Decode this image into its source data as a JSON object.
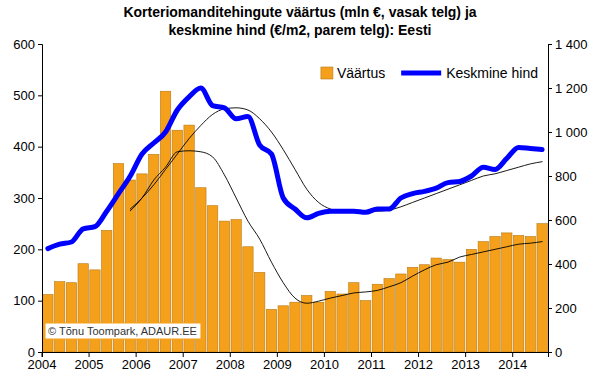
{
  "chart_data": {
    "type": "bar",
    "title": [
      "Korteriomanditehingute väärtus (mln €, vasak telg) ja",
      "keskmine hind (€/m2, parem telg): Eesti"
    ],
    "annotation": "© Tõnu Toompark, ADAUR.EE",
    "categories": [
      "2004",
      null,
      null,
      null,
      "2005",
      null,
      null,
      null,
      "2006",
      null,
      null,
      null,
      "2007",
      null,
      null,
      null,
      "2008",
      null,
      null,
      null,
      "2009",
      null,
      null,
      null,
      "2010",
      null,
      null,
      null,
      "2011",
      null,
      null,
      null,
      "2012",
      null,
      null,
      null,
      "2013",
      null,
      null,
      null,
      "2014",
      null,
      null
    ],
    "series": [
      {
        "name": "Väärtus",
        "type": "bar",
        "color": "#F5A01A",
        "values": [
          112,
          137,
          135,
          172,
          160,
          237,
          367,
          335,
          347,
          385,
          508,
          432,
          442,
          320,
          285,
          255,
          258,
          205,
          155,
          83,
          90,
          97,
          110,
          97,
          118,
          113,
          135,
          100,
          132,
          143,
          152,
          165,
          170,
          183,
          180,
          175,
          200,
          215,
          225,
          232,
          227,
          225,
          250
        ]
      },
      {
        "name": "Keskmine hind",
        "type": "line",
        "axis": "y2",
        "color": "#0000FF",
        "values": [
          470,
          490,
          500,
          560,
          570,
          640,
          720,
          800,
          900,
          950,
          1000,
          1100,
          1160,
          1200,
          1120,
          1110,
          1060,
          1070,
          940,
          900,
          700,
          650,
          610,
          630,
          640,
          640,
          640,
          635,
          650,
          650,
          700,
          720,
          730,
          745,
          770,
          775,
          800,
          840,
          830,
          880,
          930,
          925,
          920
        ]
      },
      {
        "type": "line",
        "axis": "y2",
        "color": "#000000",
        "values": [
          null,
          null,
          null,
          null,
          null,
          null,
          null,
          650,
          700,
          760,
          830,
          900,
          970,
          1030,
          1080,
          1105,
          1110,
          1100,
          1060,
          1000,
          920,
          830,
          740,
          680,
          650,
          640,
          640,
          638,
          640,
          645,
          660,
          680,
          700,
          720,
          740,
          760,
          780,
          800,
          810,
          825,
          840,
          855,
          865
        ]
      },
      {
        "type": "line",
        "color": "#000000",
        "values": [
          null,
          null,
          null,
          null,
          null,
          null,
          null,
          275,
          300,
          335,
          360,
          390,
          392,
          390,
          380,
          345,
          300,
          255,
          220,
          175,
          135,
          105,
          95,
          99,
          105,
          110,
          115,
          117,
          120,
          127,
          135,
          148,
          160,
          170,
          175,
          185,
          190,
          195,
          200,
          205,
          210,
          212,
          215
        ]
      }
    ],
    "ylim": [
      0,
      600
    ],
    "yticks": [
      0,
      100,
      200,
      300,
      400,
      500,
      600
    ],
    "y2lim": [
      0,
      1400
    ],
    "y2ticks": [
      0,
      200,
      400,
      600,
      800,
      {
        "value": 1000,
        "label": "1 000"
      },
      {
        "value": 1200,
        "label": "1 200"
      },
      {
        "value": 1400,
        "label": "1 400"
      }
    ],
    "grid": false,
    "legend": "upper right"
  }
}
